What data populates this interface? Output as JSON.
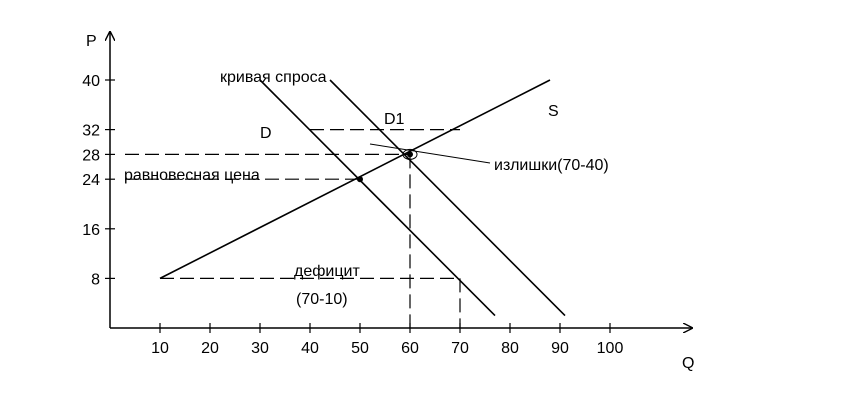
{
  "chart_data": {
    "type": "line",
    "title": "",
    "xlabel": "Q",
    "ylabel": "P",
    "xlim": [
      0,
      110
    ],
    "ylim": [
      0,
      48
    ],
    "x_ticks": [
      "10",
      "20",
      "30",
      "40",
      "50",
      "60",
      "70",
      "80",
      "90",
      "100"
    ],
    "y_ticks": [
      "8",
      "16",
      "24",
      "28",
      "32",
      "40"
    ],
    "series": [
      {
        "name": "S",
        "x": [
          10,
          88
        ],
        "y": [
          8,
          40
        ]
      },
      {
        "name": "D",
        "x": [
          30,
          77
        ],
        "y": [
          40,
          2
        ]
      },
      {
        "name": "D1",
        "x": [
          44,
          91
        ],
        "y": [
          40,
          2
        ]
      }
    ],
    "points": [
      {
        "x": 50,
        "y": 24
      },
      {
        "x": 60,
        "y": 28
      }
    ],
    "annotations": {
      "demand_curve": "кривая спроса",
      "equilibrium_price": "равновесная цена",
      "surplus": "излишки(70-40)",
      "deficit_title": "дефицит",
      "deficit_value": "(70-10)"
    }
  }
}
